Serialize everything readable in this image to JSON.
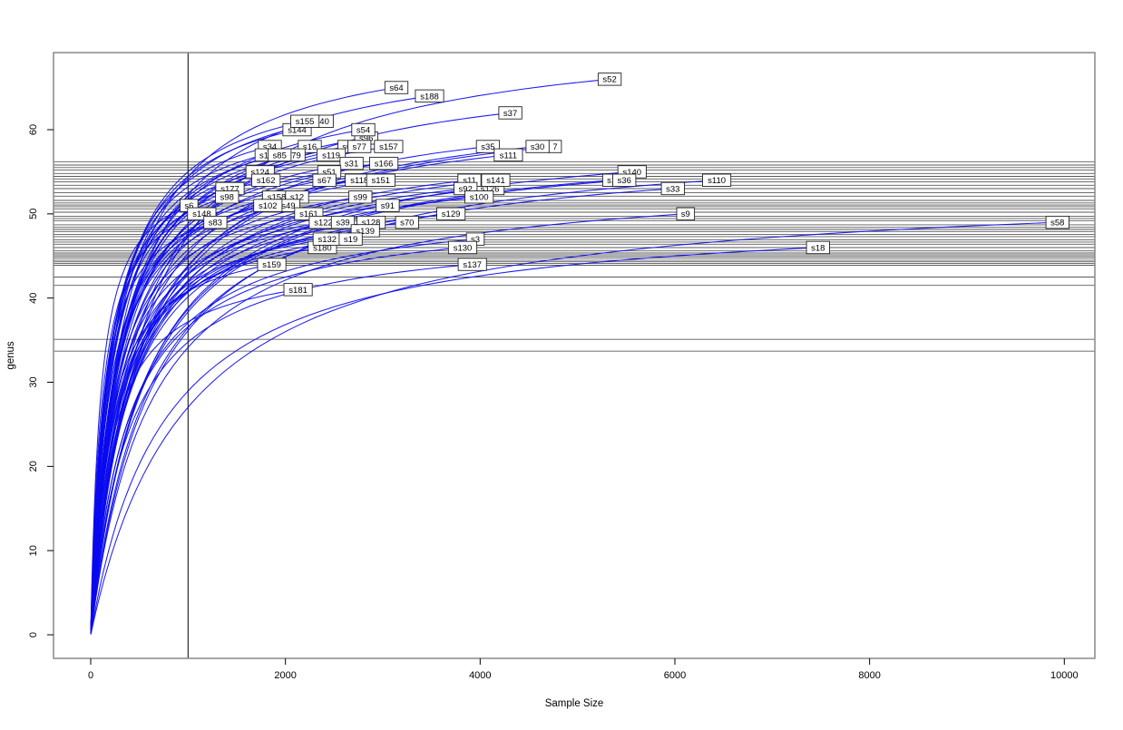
{
  "chart_data": {
    "type": "line",
    "title": "",
    "xlabel": "Sample Size",
    "ylabel": "genus",
    "xlim": [
      -350,
      10320
    ],
    "ylim": [
      -2.5,
      69.5
    ],
    "x_ticks": [
      0,
      2000,
      4000,
      6000,
      8000,
      10000
    ],
    "y_ticks": [
      0,
      10,
      20,
      30,
      40,
      50,
      60
    ],
    "grid": false,
    "legend": "none",
    "curve_color": "#0a0af0",
    "reference_line_color": "#5a5a5a",
    "vline_color": "#1a1a1a",
    "box_color": "#888888",
    "label_box_fill": "#ffffff",
    "label_box_border": "#222222",
    "vline_x": 1000,
    "hlines": [
      56.2,
      55.8,
      55.5,
      55.2,
      54.8,
      54.45,
      54.15,
      53.8,
      53.4,
      53.0,
      52.5,
      52.1,
      51.6,
      51.3,
      51.05,
      50.85,
      50.6,
      50.2,
      49.7,
      49.45,
      49.2,
      48.7,
      48.4,
      48.15,
      47.9,
      47.55,
      47.3,
      46.9,
      46.65,
      46.4,
      46.0,
      45.6,
      45.35,
      45.15,
      44.95,
      44.75,
      44.5,
      44.3,
      44.1,
      43.9,
      42.5,
      41.5,
      35.1,
      33.7
    ],
    "series_note": "Rarefaction curves: each sample curve rises from (0,1) and ends at (x = sample size, y = genus richness) where its label box is drawn. Entries flagged partial are label boxes partly hidden behind neighbouring boxes in the original.",
    "series": [
      {
        "name": "s52",
        "x": 5330,
        "y": 66
      },
      {
        "name": "s64",
        "x": 3140,
        "y": 65
      },
      {
        "name": "s188",
        "x": 3480,
        "y": 64
      },
      {
        "name": "s37",
        "x": 4310,
        "y": 62
      },
      {
        "name": "s144",
        "x": 2120,
        "y": 60
      },
      {
        "name": "s96",
        "x": 2830,
        "y": 59
      },
      {
        "name": "40",
        "x": 2400,
        "y": 61,
        "partial": true
      },
      {
        "name": "s155",
        "x": 2200,
        "y": 61
      },
      {
        "name": "s54",
        "x": 2800,
        "y": 60
      },
      {
        "name": "s34",
        "x": 1840,
        "y": 58
      },
      {
        "name": "s6",
        "x": 2630,
        "y": 58,
        "partial": true
      },
      {
        "name": "s16",
        "x": 2250,
        "y": 58
      },
      {
        "name": "s77",
        "x": 2760,
        "y": 58
      },
      {
        "name": "s157",
        "x": 3060,
        "y": 58
      },
      {
        "name": "s35",
        "x": 4080,
        "y": 58
      },
      {
        "name": "7",
        "x": 4770,
        "y": 58,
        "partial": true
      },
      {
        "name": "s30",
        "x": 4590,
        "y": 58
      },
      {
        "name": "s1",
        "x": 1780,
        "y": 57,
        "partial": true
      },
      {
        "name": "79",
        "x": 2110,
        "y": 57,
        "partial": true
      },
      {
        "name": "s85",
        "x": 1940,
        "y": 57
      },
      {
        "name": "s119",
        "x": 2470,
        "y": 57
      },
      {
        "name": "s111",
        "x": 4290,
        "y": 57
      },
      {
        "name": "s31",
        "x": 2680,
        "y": 56
      },
      {
        "name": "s166",
        "x": 3010,
        "y": 56
      },
      {
        "name": "s124",
        "x": 1740,
        "y": 55
      },
      {
        "name": "s51",
        "x": 2450,
        "y": 55
      },
      {
        "name": "s140",
        "x": 5560,
        "y": 55
      },
      {
        "name": "s162",
        "x": 1800,
        "y": 54
      },
      {
        "name": "s67",
        "x": 2400,
        "y": 54
      },
      {
        "name": "s118",
        "x": 2760,
        "y": 54
      },
      {
        "name": "s151",
        "x": 2980,
        "y": 54
      },
      {
        "name": "s126",
        "x": 4100,
        "y": 53,
        "partial": true
      },
      {
        "name": "s11",
        "x": 3890,
        "y": 54
      },
      {
        "name": "s141",
        "x": 4160,
        "y": 54
      },
      {
        "name": "s1",
        "x": 5350,
        "y": 54,
        "partial": true
      },
      {
        "name": "s36",
        "x": 5480,
        "y": 54
      },
      {
        "name": "s110",
        "x": 6430,
        "y": 54
      },
      {
        "name": "s177",
        "x": 1430,
        "y": 53
      },
      {
        "name": "s92",
        "x": 3850,
        "y": 53
      },
      {
        "name": "s33",
        "x": 5980,
        "y": 53
      },
      {
        "name": "s100",
        "x": 3990,
        "y": 52
      },
      {
        "name": "s98",
        "x": 1400,
        "y": 52
      },
      {
        "name": "s158",
        "x": 1910,
        "y": 52
      },
      {
        "name": "s12",
        "x": 2120,
        "y": 52
      },
      {
        "name": "s99",
        "x": 2770,
        "y": 52
      },
      {
        "name": "s6",
        "x": 1010,
        "y": 51
      },
      {
        "name": "s49",
        "x": 2030,
        "y": 51,
        "partial": true
      },
      {
        "name": "s102",
        "x": 1820,
        "y": 51
      },
      {
        "name": "s91",
        "x": 3050,
        "y": 51
      },
      {
        "name": "s148",
        "x": 1140,
        "y": 50
      },
      {
        "name": "s161",
        "x": 2240,
        "y": 50
      },
      {
        "name": "s129",
        "x": 3700,
        "y": 50
      },
      {
        "name": "s9",
        "x": 6110,
        "y": 50
      },
      {
        "name": "s83",
        "x": 1280,
        "y": 49
      },
      {
        "name": "s122",
        "x": 2390,
        "y": 49
      },
      {
        "name": "s39",
        "x": 2590,
        "y": 49
      },
      {
        "name": "s128",
        "x": 2880,
        "y": 49
      },
      {
        "name": "s70",
        "x": 3250,
        "y": 49
      },
      {
        "name": "s58",
        "x": 9930,
        "y": 49
      },
      {
        "name": "s139",
        "x": 2820,
        "y": 48
      },
      {
        "name": "s180",
        "x": 2380,
        "y": 46
      },
      {
        "name": "s132",
        "x": 2430,
        "y": 47
      },
      {
        "name": "s19",
        "x": 2670,
        "y": 47
      },
      {
        "name": "s3",
        "x": 3950,
        "y": 47
      },
      {
        "name": "s130",
        "x": 3820,
        "y": 46
      },
      {
        "name": "s18",
        "x": 7470,
        "y": 46
      },
      {
        "name": "s159",
        "x": 1860,
        "y": 44
      },
      {
        "name": "s137",
        "x": 3920,
        "y": 44
      },
      {
        "name": "s181",
        "x": 2130,
        "y": 41
      }
    ]
  }
}
